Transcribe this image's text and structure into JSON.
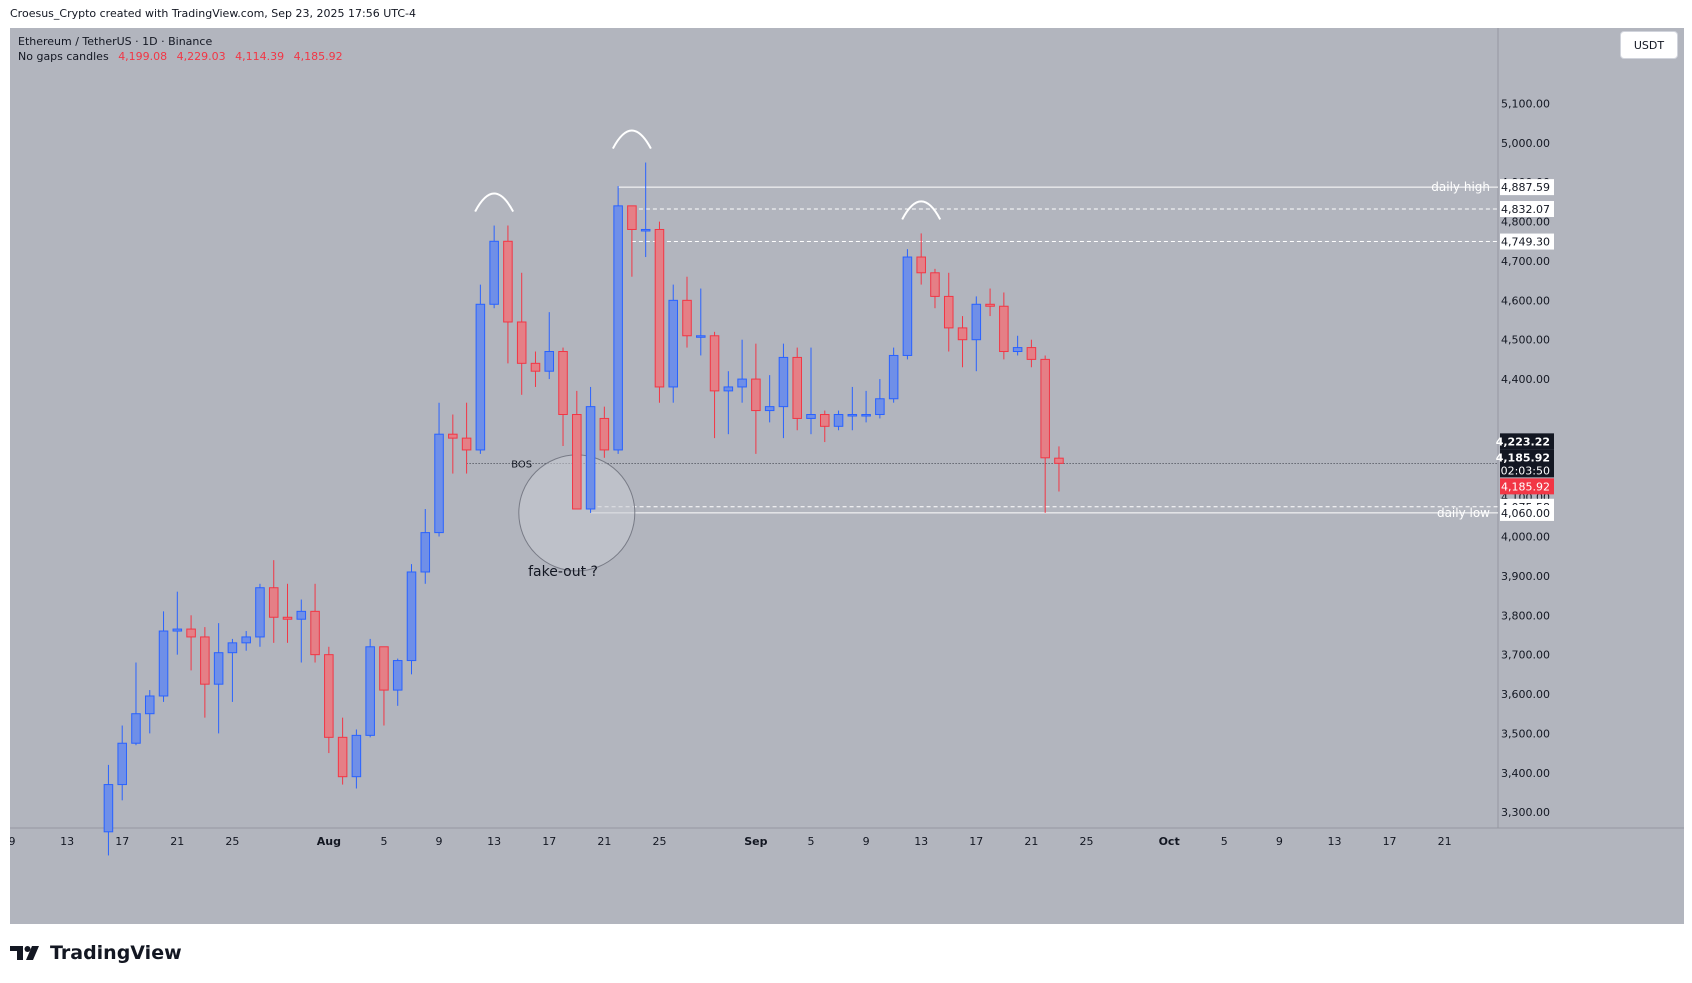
{
  "header": {
    "caption": "Croesus_Crypto created with TradingView.com, Sep 23, 2025 17:56 UTC-4"
  },
  "symbol": {
    "title": "Ethereum / TetherUS · 1D · Binance",
    "indicator": "No gaps candles",
    "ohlc": [
      "4,199.08",
      "4,229.03",
      "4,114.39",
      "4,185.92"
    ]
  },
  "currency_button": "USDT",
  "brand": "TradingView",
  "colors": {
    "up": "#2962ff",
    "down": "#f23645",
    "up_fill": "#6f8fe8",
    "down_fill": "#e57f86",
    "background": "#b2b5be"
  },
  "chart_data": {
    "type": "candlestick",
    "title": "Ethereum / TetherUS · 1D · Binance",
    "ylim": [
      3280,
      5180
    ],
    "y_ticks": [
      3300,
      3400,
      3500,
      3600,
      3700,
      3800,
      3900,
      4000,
      4100,
      4400,
      4500,
      4600,
      4700,
      4800,
      4900,
      5000,
      5100
    ],
    "x_range": [
      "2025-07-09",
      "2025-10-24"
    ],
    "x_ticks": [
      {
        "date": "2025-07-09",
        "label": "9"
      },
      {
        "date": "2025-07-13",
        "label": "13"
      },
      {
        "date": "2025-07-17",
        "label": "17"
      },
      {
        "date": "2025-07-21",
        "label": "21"
      },
      {
        "date": "2025-07-25",
        "label": "25"
      },
      {
        "date": "2025-08-01",
        "label": "Aug"
      },
      {
        "date": "2025-08-05",
        "label": "5"
      },
      {
        "date": "2025-08-09",
        "label": "9"
      },
      {
        "date": "2025-08-13",
        "label": "13"
      },
      {
        "date": "2025-08-17",
        "label": "17"
      },
      {
        "date": "2025-08-21",
        "label": "21"
      },
      {
        "date": "2025-08-25",
        "label": "25"
      },
      {
        "date": "2025-09-01",
        "label": "Sep"
      },
      {
        "date": "2025-09-05",
        "label": "5"
      },
      {
        "date": "2025-09-09",
        "label": "9"
      },
      {
        "date": "2025-09-13",
        "label": "13"
      },
      {
        "date": "2025-09-17",
        "label": "17"
      },
      {
        "date": "2025-09-21",
        "label": "21"
      },
      {
        "date": "2025-09-25",
        "label": "25"
      },
      {
        "date": "2025-10-01",
        "label": "Oct"
      },
      {
        "date": "2025-10-05",
        "label": "5"
      },
      {
        "date": "2025-10-09",
        "label": "9"
      },
      {
        "date": "2025-10-13",
        "label": "13"
      },
      {
        "date": "2025-10-17",
        "label": "17"
      },
      {
        "date": "2025-10-21",
        "label": "21"
      }
    ],
    "candles": [
      {
        "date": "2025-07-16",
        "o": 3250,
        "h": 3420,
        "l": 3190,
        "c": 3370
      },
      {
        "date": "2025-07-17",
        "o": 3370,
        "h": 3520,
        "l": 3330,
        "c": 3475
      },
      {
        "date": "2025-07-18",
        "o": 3475,
        "h": 3680,
        "l": 3470,
        "c": 3550
      },
      {
        "date": "2025-07-19",
        "o": 3550,
        "h": 3610,
        "l": 3500,
        "c": 3595
      },
      {
        "date": "2025-07-20",
        "o": 3595,
        "h": 3810,
        "l": 3580,
        "c": 3760
      },
      {
        "date": "2025-07-21",
        "o": 3760,
        "h": 3860,
        "l": 3700,
        "c": 3765
      },
      {
        "date": "2025-07-22",
        "o": 3765,
        "h": 3800,
        "l": 3660,
        "c": 3745
      },
      {
        "date": "2025-07-23",
        "o": 3745,
        "h": 3770,
        "l": 3540,
        "c": 3625
      },
      {
        "date": "2025-07-24",
        "o": 3625,
        "h": 3780,
        "l": 3500,
        "c": 3705
      },
      {
        "date": "2025-07-25",
        "o": 3705,
        "h": 3740,
        "l": 3580,
        "c": 3730
      },
      {
        "date": "2025-07-26",
        "o": 3730,
        "h": 3760,
        "l": 3710,
        "c": 3745
      },
      {
        "date": "2025-07-27",
        "o": 3745,
        "h": 3880,
        "l": 3720,
        "c": 3870
      },
      {
        "date": "2025-07-28",
        "o": 3870,
        "h": 3940,
        "l": 3730,
        "c": 3795
      },
      {
        "date": "2025-07-29",
        "o": 3795,
        "h": 3880,
        "l": 3730,
        "c": 3790
      },
      {
        "date": "2025-07-30",
        "o": 3790,
        "h": 3840,
        "l": 3680,
        "c": 3810
      },
      {
        "date": "2025-07-31",
        "o": 3810,
        "h": 3880,
        "l": 3680,
        "c": 3700
      },
      {
        "date": "2025-08-01",
        "o": 3700,
        "h": 3720,
        "l": 3450,
        "c": 3490
      },
      {
        "date": "2025-08-02",
        "o": 3490,
        "h": 3540,
        "l": 3370,
        "c": 3390
      },
      {
        "date": "2025-08-03",
        "o": 3390,
        "h": 3510,
        "l": 3360,
        "c": 3495
      },
      {
        "date": "2025-08-04",
        "o": 3495,
        "h": 3740,
        "l": 3490,
        "c": 3720
      },
      {
        "date": "2025-08-05",
        "o": 3720,
        "h": 3720,
        "l": 3520,
        "c": 3610
      },
      {
        "date": "2025-08-06",
        "o": 3610,
        "h": 3690,
        "l": 3570,
        "c": 3685
      },
      {
        "date": "2025-08-07",
        "o": 3685,
        "h": 3930,
        "l": 3650,
        "c": 3910
      },
      {
        "date": "2025-08-08",
        "o": 3910,
        "h": 4070,
        "l": 3880,
        "c": 4010
      },
      {
        "date": "2025-08-09",
        "o": 4010,
        "h": 4340,
        "l": 4000,
        "c": 4260
      },
      {
        "date": "2025-08-10",
        "o": 4260,
        "h": 4310,
        "l": 4160,
        "c": 4250
      },
      {
        "date": "2025-08-11",
        "o": 4250,
        "h": 4340,
        "l": 4160,
        "c": 4220
      },
      {
        "date": "2025-08-12",
        "o": 4220,
        "h": 4640,
        "l": 4210,
        "c": 4590
      },
      {
        "date": "2025-08-13",
        "o": 4590,
        "h": 4790,
        "l": 4580,
        "c": 4750
      },
      {
        "date": "2025-08-14",
        "o": 4750,
        "h": 4790,
        "l": 4440,
        "c": 4545
      },
      {
        "date": "2025-08-15",
        "o": 4545,
        "h": 4670,
        "l": 4360,
        "c": 4440
      },
      {
        "date": "2025-08-16",
        "o": 4440,
        "h": 4470,
        "l": 4380,
        "c": 4420
      },
      {
        "date": "2025-08-17",
        "o": 4420,
        "h": 4570,
        "l": 4400,
        "c": 4470
      },
      {
        "date": "2025-08-18",
        "o": 4470,
        "h": 4480,
        "l": 4230,
        "c": 4310
      },
      {
        "date": "2025-08-19",
        "o": 4310,
        "h": 4370,
        "l": 4070,
        "c": 4070
      },
      {
        "date": "2025-08-20",
        "o": 4070,
        "h": 4380,
        "l": 4060,
        "c": 4330
      },
      {
        "date": "2025-08-21",
        "o": 4300,
        "h": 4330,
        "l": 4200,
        "c": 4220
      },
      {
        "date": "2025-08-22",
        "o": 4220,
        "h": 4890,
        "l": 4210,
        "c": 4840
      },
      {
        "date": "2025-08-23",
        "o": 4840,
        "h": 4840,
        "l": 4660,
        "c": 4780
      },
      {
        "date": "2025-08-24",
        "o": 4780,
        "h": 4950,
        "l": 4710,
        "c": 4780
      },
      {
        "date": "2025-08-25",
        "o": 4780,
        "h": 4800,
        "l": 4340,
        "c": 4380
      },
      {
        "date": "2025-08-26",
        "o": 4380,
        "h": 4640,
        "l": 4340,
        "c": 4600
      },
      {
        "date": "2025-08-27",
        "o": 4600,
        "h": 4660,
        "l": 4480,
        "c": 4510
      },
      {
        "date": "2025-08-28",
        "o": 4510,
        "h": 4630,
        "l": 4460,
        "c": 4510
      },
      {
        "date": "2025-08-29",
        "o": 4510,
        "h": 4520,
        "l": 4250,
        "c": 4370
      },
      {
        "date": "2025-08-30",
        "o": 4370,
        "h": 4420,
        "l": 4260,
        "c": 4380
      },
      {
        "date": "2025-08-31",
        "o": 4380,
        "h": 4500,
        "l": 4340,
        "c": 4400
      },
      {
        "date": "2025-09-01",
        "o": 4400,
        "h": 4490,
        "l": 4210,
        "c": 4320
      },
      {
        "date": "2025-09-02",
        "o": 4320,
        "h": 4410,
        "l": 4290,
        "c": 4330
      },
      {
        "date": "2025-09-03",
        "o": 4330,
        "h": 4490,
        "l": 4250,
        "c": 4455
      },
      {
        "date": "2025-09-04",
        "o": 4455,
        "h": 4480,
        "l": 4270,
        "c": 4300
      },
      {
        "date": "2025-09-05",
        "o": 4300,
        "h": 4480,
        "l": 4260,
        "c": 4310
      },
      {
        "date": "2025-09-06",
        "o": 4310,
        "h": 4320,
        "l": 4240,
        "c": 4280
      },
      {
        "date": "2025-09-07",
        "o": 4280,
        "h": 4320,
        "l": 4270,
        "c": 4310
      },
      {
        "date": "2025-09-08",
        "o": 4310,
        "h": 4380,
        "l": 4270,
        "c": 4310
      },
      {
        "date": "2025-09-09",
        "o": 4310,
        "h": 4370,
        "l": 4290,
        "c": 4310
      },
      {
        "date": "2025-09-10",
        "o": 4310,
        "h": 4400,
        "l": 4300,
        "c": 4350
      },
      {
        "date": "2025-09-11",
        "o": 4350,
        "h": 4480,
        "l": 4340,
        "c": 4460
      },
      {
        "date": "2025-09-12",
        "o": 4460,
        "h": 4730,
        "l": 4450,
        "c": 4710
      },
      {
        "date": "2025-09-13",
        "o": 4710,
        "h": 4770,
        "l": 4640,
        "c": 4670
      },
      {
        "date": "2025-09-14",
        "o": 4670,
        "h": 4680,
        "l": 4580,
        "c": 4610
      },
      {
        "date": "2025-09-15",
        "o": 4610,
        "h": 4670,
        "l": 4470,
        "c": 4530
      },
      {
        "date": "2025-09-16",
        "o": 4530,
        "h": 4560,
        "l": 4430,
        "c": 4500
      },
      {
        "date": "2025-09-17",
        "o": 4500,
        "h": 4610,
        "l": 4420,
        "c": 4590
      },
      {
        "date": "2025-09-18",
        "o": 4590,
        "h": 4630,
        "l": 4560,
        "c": 4585
      },
      {
        "date": "2025-09-19",
        "o": 4585,
        "h": 4620,
        "l": 4450,
        "c": 4470
      },
      {
        "date": "2025-09-20",
        "o": 4470,
        "h": 4510,
        "l": 4460,
        "c": 4480
      },
      {
        "date": "2025-09-21",
        "o": 4480,
        "h": 4500,
        "l": 4430,
        "c": 4450
      },
      {
        "date": "2025-09-22",
        "o": 4450,
        "h": 4460,
        "l": 4060,
        "c": 4200
      },
      {
        "date": "2025-09-23",
        "o": 4199.08,
        "h": 4229.03,
        "l": 4114.39,
        "c": 4185.92
      }
    ],
    "levels": [
      {
        "label": "daily high",
        "value": 4887.59,
        "style": "solid",
        "badge": "4,887.59"
      },
      {
        "label": "",
        "value": 4832.07,
        "style": "dashed",
        "badge": "4,832.07"
      },
      {
        "label": "",
        "value": 4749.3,
        "style": "dashed",
        "badge": "4,749.30"
      },
      {
        "label": "",
        "value": 4075.58,
        "style": "dashed",
        "badge": "4,075.58"
      },
      {
        "label": "daily low",
        "value": 4060.0,
        "style": "solid",
        "badge": "4,060.00"
      }
    ],
    "current_price": {
      "price": "4,185.92",
      "high_badge": "4,223.22",
      "countdown": "02:03:50",
      "value": 4185.92
    },
    "annotations": {
      "bos": {
        "text": "BOS",
        "value": 4185.92
      },
      "fakeout": {
        "text": "fake-out ?"
      },
      "peaks": [
        "2025-08-13",
        "2025-08-23",
        "2025-09-13"
      ]
    }
  }
}
